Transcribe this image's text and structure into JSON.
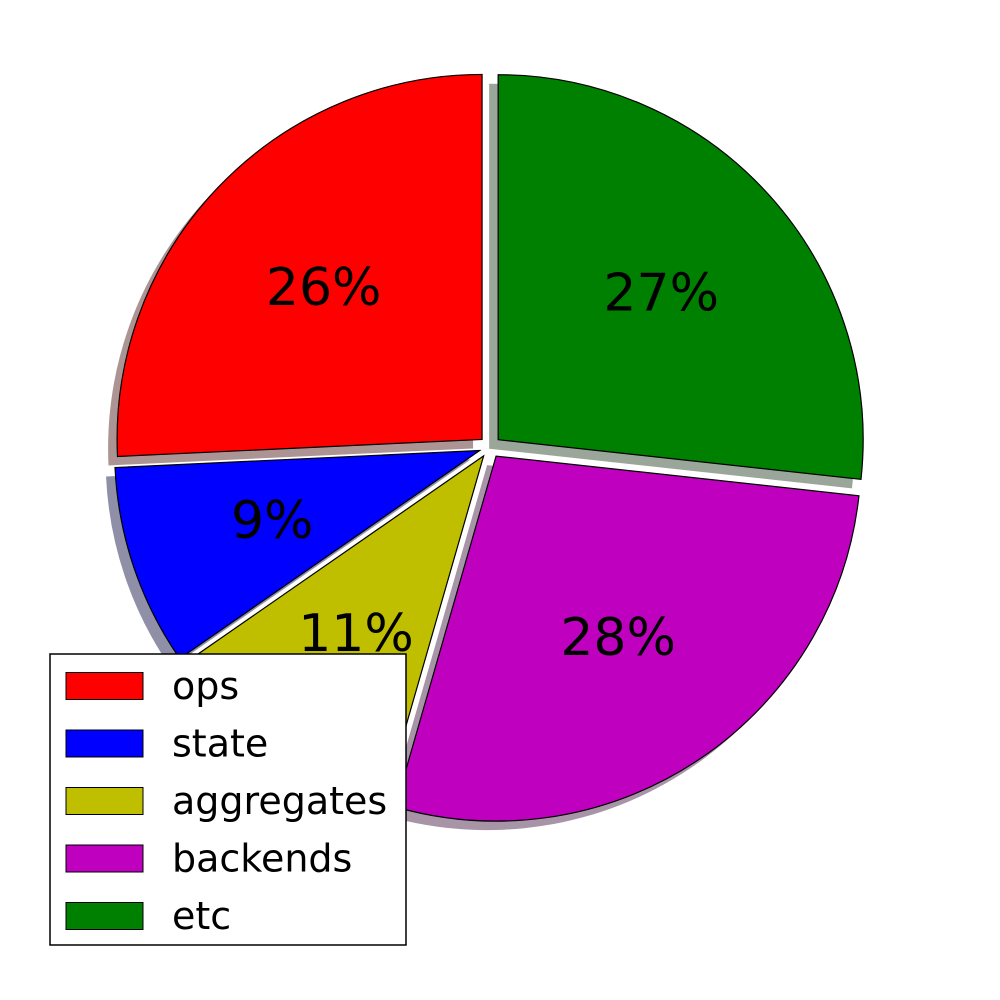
{
  "chart_data": {
    "type": "pie",
    "categories": [
      "ops",
      "state",
      "aggregates",
      "backends",
      "etc"
    ],
    "values": [
      26,
      9,
      11,
      28,
      27
    ],
    "labels": [
      "26%",
      "9%",
      "11%",
      "28%",
      "27%"
    ],
    "colors": [
      "#ff0000",
      "#0000ff",
      "#bfbf00",
      "#bf00bf",
      "#008000"
    ],
    "exploded": true,
    "shadow": true,
    "start_angle": 90,
    "direction": "counterclockwise",
    "legend": {
      "position": "lower-left",
      "entries": [
        "ops",
        "state",
        "aggregates",
        "backends",
        "etc"
      ]
    }
  }
}
